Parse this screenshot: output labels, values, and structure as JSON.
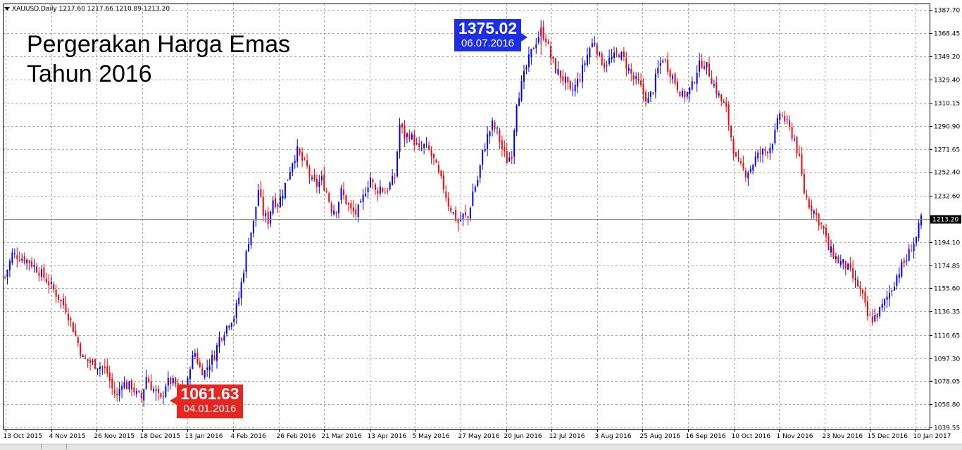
{
  "symbol_info": "XAUUSD,Daily  1217.60 1217.66 1210.89 1213.20",
  "title_lines": [
    "Pergerakan Harga Emas",
    "Tahun 2016"
  ],
  "callout_high": {
    "value": "1375.02",
    "date": "06.07.2016"
  },
  "callout_low": {
    "value": "1061.63",
    "date": "04.01.2016"
  },
  "colors": {
    "bull": "#0000ff",
    "bear": "#ff0000",
    "grid": "#a8a8a8",
    "axis": "#000000",
    "bg": "#ffffff"
  },
  "chart_data": {
    "type": "candlestick",
    "y_ticks": [
      "1387.70",
      "1368.45",
      "1349.20",
      "1329.40",
      "1310.15",
      "1290.90",
      "1271.65",
      "1252.40",
      "1232.60",
      "1213.20",
      "1194.10",
      "1174.85",
      "1155.60",
      "1136.35",
      "1116.65",
      "1097.30",
      "1078.05",
      "1058.80",
      "1039.55"
    ],
    "ylim": [
      1039.55,
      1387.7
    ],
    "current_price": "1213.20",
    "x_ticks": [
      "13 Oct 2015",
      "4 Nov 2015",
      "26 Nov 2015",
      "18 Dec 2015",
      "13 Jan 2016",
      "4 Feb 2016",
      "26 Feb 2016",
      "21 Mar 2016",
      "13 Apr 2016",
      "5 May 2016",
      "27 May 2016",
      "20 Jun 2016",
      "12 Jul 2016",
      "3 Aug 2016",
      "25 Aug 2016",
      "16 Sep 2016",
      "10 Oct 2016",
      "1 Nov 2016",
      "23 Nov 2016",
      "15 Dec 2016",
      "10 Jan 2017"
    ],
    "close_path": [
      [
        0,
        1165
      ],
      [
        3,
        1184
      ],
      [
        6,
        1182
      ],
      [
        10,
        1178
      ],
      [
        14,
        1170
      ],
      [
        18,
        1160
      ],
      [
        22,
        1148
      ],
      [
        25,
        1139
      ],
      [
        28,
        1122
      ],
      [
        30,
        1110
      ],
      [
        32,
        1097
      ],
      [
        36,
        1093
      ],
      [
        40,
        1090
      ],
      [
        42,
        1085
      ],
      [
        44,
        1072
      ],
      [
        46,
        1065
      ],
      [
        48,
        1078
      ],
      [
        50,
        1074
      ],
      [
        52,
        1074
      ],
      [
        54,
        1067
      ],
      [
        56,
        1064
      ],
      [
        58,
        1082
      ],
      [
        60,
        1074
      ],
      [
        62,
        1068
      ],
      [
        64,
        1062
      ],
      [
        66,
        1076
      ],
      [
        68,
        1078
      ],
      [
        70,
        1075
      ],
      [
        72,
        1071
      ],
      [
        74,
        1062
      ],
      [
        76,
        1092
      ],
      [
        78,
        1102
      ],
      [
        80,
        1089
      ],
      [
        82,
        1086
      ],
      [
        84,
        1094
      ],
      [
        86,
        1100
      ],
      [
        88,
        1114
      ],
      [
        90,
        1120
      ],
      [
        92,
        1128
      ],
      [
        94,
        1132
      ],
      [
        96,
        1148
      ],
      [
        98,
        1172
      ],
      [
        100,
        1196
      ],
      [
        102,
        1210
      ],
      [
        104,
        1238
      ],
      [
        106,
        1218
      ],
      [
        108,
        1212
      ],
      [
        110,
        1230
      ],
      [
        112,
        1226
      ],
      [
        114,
        1236
      ],
      [
        116,
        1248
      ],
      [
        118,
        1262
      ],
      [
        120,
        1270
      ],
      [
        122,
        1262
      ],
      [
        124,
        1256
      ],
      [
        126,
        1244
      ],
      [
        128,
        1242
      ],
      [
        130,
        1246
      ],
      [
        132,
        1236
      ],
      [
        134,
        1222
      ],
      [
        136,
        1222
      ],
      [
        138,
        1236
      ],
      [
        140,
        1228
      ],
      [
        142,
        1220
      ],
      [
        144,
        1218
      ],
      [
        146,
        1224
      ],
      [
        148,
        1238
      ],
      [
        150,
        1248
      ],
      [
        152,
        1236
      ],
      [
        154,
        1240
      ],
      [
        156,
        1236
      ],
      [
        158,
        1242
      ],
      [
        160,
        1248
      ],
      [
        162,
        1292
      ],
      [
        164,
        1282
      ],
      [
        166,
        1284
      ],
      [
        168,
        1278
      ],
      [
        170,
        1270
      ],
      [
        172,
        1274
      ],
      [
        174,
        1270
      ],
      [
        176,
        1262
      ],
      [
        178,
        1250
      ],
      [
        180,
        1240
      ],
      [
        182,
        1226
      ],
      [
        184,
        1218
      ],
      [
        186,
        1210
      ],
      [
        188,
        1216
      ],
      [
        190,
        1214
      ],
      [
        192,
        1236
      ],
      [
        194,
        1246
      ],
      [
        196,
        1268
      ],
      [
        198,
        1282
      ],
      [
        200,
        1292
      ],
      [
        202,
        1286
      ],
      [
        204,
        1272
      ],
      [
        206,
        1262
      ],
      [
        208,
        1268
      ],
      [
        210,
        1312
      ],
      [
        212,
        1325
      ],
      [
        214,
        1340
      ],
      [
        216,
        1352
      ],
      [
        218,
        1362
      ],
      [
        220,
        1370
      ],
      [
        222,
        1364
      ],
      [
        224,
        1348
      ],
      [
        226,
        1338
      ],
      [
        228,
        1333
      ],
      [
        230,
        1328
      ],
      [
        232,
        1318
      ],
      [
        234,
        1324
      ],
      [
        236,
        1332
      ],
      [
        238,
        1344
      ],
      [
        240,
        1356
      ],
      [
        242,
        1362
      ],
      [
        244,
        1348
      ],
      [
        246,
        1342
      ],
      [
        248,
        1346
      ],
      [
        250,
        1348
      ],
      [
        252,
        1352
      ],
      [
        254,
        1346
      ],
      [
        256,
        1338
      ],
      [
        258,
        1330
      ],
      [
        260,
        1326
      ],
      [
        262,
        1318
      ],
      [
        264,
        1312
      ],
      [
        266,
        1322
      ],
      [
        268,
        1338
      ],
      [
        270,
        1348
      ],
      [
        272,
        1340
      ],
      [
        274,
        1332
      ],
      [
        276,
        1324
      ],
      [
        278,
        1316
      ],
      [
        280,
        1318
      ],
      [
        282,
        1324
      ],
      [
        284,
        1338
      ],
      [
        286,
        1344
      ],
      [
        288,
        1340
      ],
      [
        290,
        1330
      ],
      [
        292,
        1320
      ],
      [
        294,
        1312
      ],
      [
        296,
        1304
      ],
      [
        298,
        1282
      ],
      [
        300,
        1262
      ],
      [
        302,
        1256
      ],
      [
        304,
        1252
      ],
      [
        306,
        1256
      ],
      [
        308,
        1264
      ],
      [
        310,
        1268
      ],
      [
        312,
        1270
      ],
      [
        314,
        1274
      ],
      [
        316,
        1284
      ],
      [
        318,
        1302
      ],
      [
        320,
        1296
      ],
      [
        322,
        1288
      ],
      [
        324,
        1280
      ],
      [
        326,
        1262
      ],
      [
        328,
        1236
      ],
      [
        330,
        1226
      ],
      [
        332,
        1220
      ],
      [
        334,
        1212
      ],
      [
        336,
        1204
      ],
      [
        338,
        1188
      ],
      [
        340,
        1184
      ],
      [
        342,
        1178
      ],
      [
        344,
        1176
      ],
      [
        346,
        1172
      ],
      [
        348,
        1164
      ],
      [
        350,
        1158
      ],
      [
        352,
        1148
      ],
      [
        354,
        1132
      ],
      [
        356,
        1130
      ],
      [
        358,
        1134
      ],
      [
        360,
        1140
      ],
      [
        362,
        1148
      ],
      [
        364,
        1156
      ],
      [
        366,
        1166
      ],
      [
        368,
        1174
      ],
      [
        370,
        1180
      ],
      [
        372,
        1190
      ],
      [
        374,
        1198
      ],
      [
        376,
        1213
      ]
    ],
    "high_event": {
      "value": 1375.02,
      "date": "06.07.2016"
    },
    "low_event": {
      "value": 1061.63,
      "date": "04.01.2016"
    }
  }
}
